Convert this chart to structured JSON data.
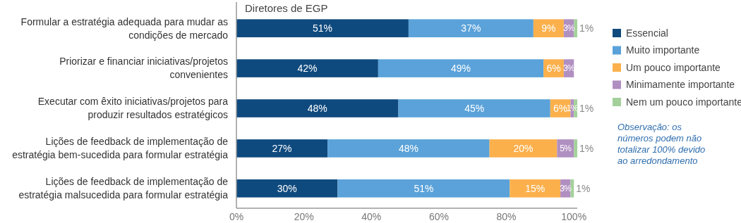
{
  "chart_data": {
    "type": "bar",
    "orientation": "horizontal",
    "stacked": true,
    "title": "Diretores de EGP",
    "categories": [
      "Formular a estratégia adequada para mudar as\ncondições de mercado",
      "Priorizar e financiar iniciativas/projetos\nconvenientes",
      "Executar com êxito iniciativas/projetos para\nproduzir resultados estratégicos",
      "Lições de feedback de implementação de\nestratégia bem-sucedida para formular estratégia",
      "Lições de feedback de implementação de\nestratégia malsucedida para formular estratégia"
    ],
    "series": [
      {
        "name": "Essencial",
        "color": "#0f4a7e",
        "values": [
          51,
          42,
          48,
          27,
          30
        ],
        "value_labels": [
          "51%",
          "42%",
          "48%",
          "27%",
          "30%"
        ]
      },
      {
        "name": "Muito importante",
        "color": "#5aa2d9",
        "values": [
          37,
          49,
          45,
          48,
          51
        ],
        "value_labels": [
          "37%",
          "49%",
          "45%",
          "48%",
          "51%"
        ]
      },
      {
        "name": "Um pouco importante",
        "color": "#fbb04c",
        "values": [
          9,
          6,
          6,
          20,
          15
        ],
        "value_labels": [
          "9%",
          "6%",
          "6%",
          "20%",
          "15%"
        ]
      },
      {
        "name": "Minimamente importante",
        "color": "#b08fc1",
        "values": [
          3,
          3,
          1,
          5,
          3
        ],
        "value_labels": [
          "3%",
          "3%",
          "1%",
          "5%",
          "3%"
        ]
      },
      {
        "name": "Nem um pouco importante",
        "color": "#a3d09a",
        "values": [
          1,
          null,
          1,
          1,
          1
        ],
        "value_labels": [
          "1%",
          null,
          "1%",
          "1%",
          "1%"
        ]
      }
    ],
    "xlim": [
      0,
      101
    ],
    "xticks": [
      {
        "value": 0,
        "label": "0%"
      },
      {
        "value": 20,
        "label": "20%"
      },
      {
        "value": 40,
        "label": "40%"
      },
      {
        "value": 60,
        "label": "60%"
      },
      {
        "value": 80,
        "label": "80%"
      },
      {
        "value": 100,
        "label": "100%"
      }
    ],
    "legend": "right",
    "grid": false,
    "annotations": [
      "Observação: os\nnúmeros podem não\ntotalizar 100% devido\nao arredondamento"
    ]
  }
}
